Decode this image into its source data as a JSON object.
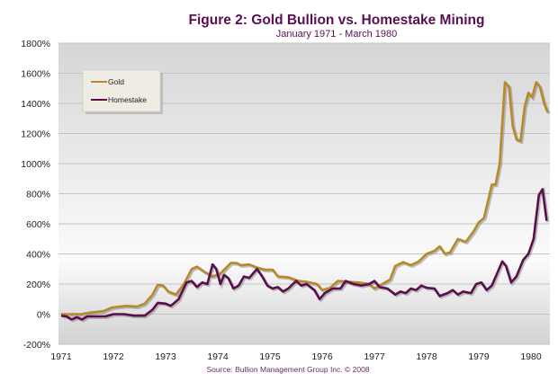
{
  "chart_data": {
    "type": "line",
    "title": "Figure 2: Gold Bullion vs. Homestake Mining",
    "subtitle": "January 1971 - March 1980",
    "source": "Source: Bullion Management Group Inc. © 2008",
    "xlabel": "",
    "ylabel": "",
    "xlim": [
      1970.95,
      1980.35
    ],
    "ylim": [
      -200,
      1800
    ],
    "x_ticks": [
      "1971",
      "1972",
      "1973",
      "1974",
      "1975",
      "1976",
      "1977",
      "1978",
      "1979",
      "1980"
    ],
    "y_ticks": [
      "1800%",
      "1600%",
      "1400%",
      "1200%",
      "1000%",
      "800%",
      "600%",
      "400%",
      "200%",
      "0%",
      "-200%"
    ],
    "grid": true,
    "legend": "top-left",
    "series": [
      {
        "name": "Gold",
        "color": "#b8892a",
        "points": [
          [
            1971.0,
            0
          ],
          [
            1971.38,
            0
          ],
          [
            1971.55,
            10
          ],
          [
            1971.81,
            20
          ],
          [
            1971.98,
            45
          ],
          [
            1972.24,
            55
          ],
          [
            1972.45,
            50
          ],
          [
            1972.6,
            70
          ],
          [
            1972.75,
            130
          ],
          [
            1972.85,
            195
          ],
          [
            1972.95,
            190
          ],
          [
            1973.05,
            150
          ],
          [
            1973.2,
            130
          ],
          [
            1973.35,
            200
          ],
          [
            1973.5,
            300
          ],
          [
            1973.6,
            315
          ],
          [
            1973.75,
            280
          ],
          [
            1973.9,
            250
          ],
          [
            1974.05,
            270
          ],
          [
            1974.25,
            340
          ],
          [
            1974.35,
            340
          ],
          [
            1974.45,
            325
          ],
          [
            1974.6,
            330
          ],
          [
            1974.75,
            310
          ],
          [
            1974.9,
            295
          ],
          [
            1975.05,
            295
          ],
          [
            1975.15,
            250
          ],
          [
            1975.35,
            245
          ],
          [
            1975.55,
            220
          ],
          [
            1975.7,
            215
          ],
          [
            1975.9,
            200
          ],
          [
            1976.0,
            160
          ],
          [
            1976.15,
            175
          ],
          [
            1976.3,
            220
          ],
          [
            1976.5,
            215
          ],
          [
            1976.7,
            210
          ],
          [
            1976.9,
            200
          ],
          [
            1977.0,
            170
          ],
          [
            1977.15,
            200
          ],
          [
            1977.3,
            230
          ],
          [
            1977.4,
            320
          ],
          [
            1977.55,
            345
          ],
          [
            1977.7,
            325
          ],
          [
            1977.85,
            350
          ],
          [
            1978.0,
            400
          ],
          [
            1978.15,
            420
          ],
          [
            1978.25,
            450
          ],
          [
            1978.35,
            400
          ],
          [
            1978.45,
            410
          ],
          [
            1978.6,
            500
          ],
          [
            1978.75,
            480
          ],
          [
            1978.9,
            550
          ],
          [
            1979.0,
            610
          ],
          [
            1979.1,
            640
          ],
          [
            1979.25,
            860
          ],
          [
            1979.32,
            860
          ],
          [
            1979.4,
            1000
          ],
          [
            1979.5,
            1540
          ],
          [
            1979.58,
            1510
          ],
          [
            1979.65,
            1250
          ],
          [
            1979.72,
            1160
          ],
          [
            1979.8,
            1150
          ],
          [
            1979.88,
            1380
          ],
          [
            1979.95,
            1470
          ],
          [
            1980.02,
            1440
          ],
          [
            1980.1,
            1540
          ],
          [
            1980.17,
            1510
          ],
          [
            1980.25,
            1400
          ],
          [
            1980.32,
            1340
          ]
        ]
      },
      {
        "name": "Homestake",
        "color": "#5a0f4a",
        "points": [
          [
            1971.0,
            -10
          ],
          [
            1971.1,
            -15
          ],
          [
            1971.2,
            -35
          ],
          [
            1971.3,
            -20
          ],
          [
            1971.4,
            -35
          ],
          [
            1971.5,
            -15
          ],
          [
            1971.7,
            -15
          ],
          [
            1971.85,
            -15
          ],
          [
            1972.0,
            0
          ],
          [
            1972.2,
            0
          ],
          [
            1972.4,
            -10
          ],
          [
            1972.6,
            -10
          ],
          [
            1972.75,
            30
          ],
          [
            1972.85,
            75
          ],
          [
            1973.0,
            70
          ],
          [
            1973.1,
            55
          ],
          [
            1973.25,
            100
          ],
          [
            1973.4,
            210
          ],
          [
            1973.5,
            220
          ],
          [
            1973.6,
            180
          ],
          [
            1973.7,
            210
          ],
          [
            1973.8,
            200
          ],
          [
            1973.9,
            330
          ],
          [
            1973.97,
            300
          ],
          [
            1974.05,
            200
          ],
          [
            1974.12,
            260
          ],
          [
            1974.2,
            240
          ],
          [
            1974.3,
            170
          ],
          [
            1974.4,
            190
          ],
          [
            1974.5,
            250
          ],
          [
            1974.6,
            240
          ],
          [
            1974.75,
            300
          ],
          [
            1974.85,
            250
          ],
          [
            1974.95,
            190
          ],
          [
            1975.05,
            170
          ],
          [
            1975.15,
            180
          ],
          [
            1975.25,
            150
          ],
          [
            1975.35,
            170
          ],
          [
            1975.5,
            220
          ],
          [
            1975.6,
            190
          ],
          [
            1975.7,
            200
          ],
          [
            1975.85,
            160
          ],
          [
            1975.95,
            100
          ],
          [
            1976.05,
            140
          ],
          [
            1976.2,
            170
          ],
          [
            1976.35,
            170
          ],
          [
            1976.45,
            220
          ],
          [
            1976.6,
            200
          ],
          [
            1976.75,
            190
          ],
          [
            1976.9,
            200
          ],
          [
            1977.0,
            220
          ],
          [
            1977.1,
            180
          ],
          [
            1977.25,
            170
          ],
          [
            1977.4,
            130
          ],
          [
            1977.5,
            150
          ],
          [
            1977.6,
            140
          ],
          [
            1977.7,
            170
          ],
          [
            1977.8,
            160
          ],
          [
            1977.9,
            190
          ],
          [
            1978.0,
            175
          ],
          [
            1978.15,
            170
          ],
          [
            1978.25,
            120
          ],
          [
            1978.4,
            140
          ],
          [
            1978.5,
            160
          ],
          [
            1978.6,
            130
          ],
          [
            1978.7,
            150
          ],
          [
            1978.85,
            140
          ],
          [
            1978.95,
            200
          ],
          [
            1979.05,
            210
          ],
          [
            1979.15,
            160
          ],
          [
            1979.25,
            190
          ],
          [
            1979.45,
            350
          ],
          [
            1979.52,
            320
          ],
          [
            1979.62,
            210
          ],
          [
            1979.72,
            250
          ],
          [
            1979.85,
            360
          ],
          [
            1979.95,
            400
          ],
          [
            1980.05,
            500
          ],
          [
            1980.15,
            790
          ],
          [
            1980.22,
            830
          ],
          [
            1980.3,
            620
          ]
        ]
      }
    ]
  }
}
